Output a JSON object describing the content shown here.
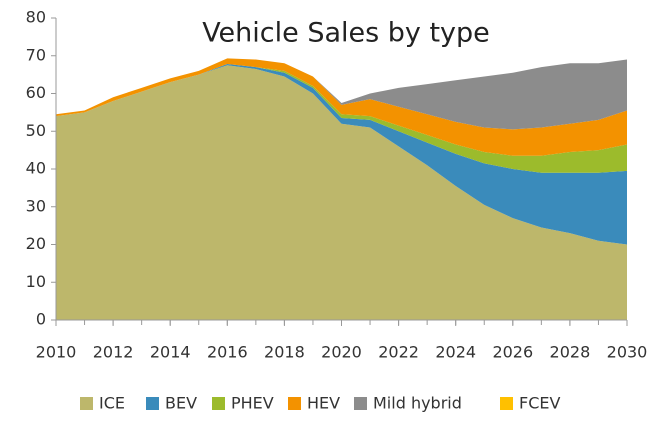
{
  "chart_data": {
    "type": "stacked_area",
    "title": "Vehicle Sales by type",
    "x": [
      2010,
      2011,
      2012,
      2013,
      2014,
      2015,
      2016,
      2017,
      2018,
      2019,
      2020,
      2021,
      2022,
      2023,
      2024,
      2025,
      2026,
      2027,
      2028,
      2029,
      2030
    ],
    "xlim": [
      2010,
      2030
    ],
    "xticks": [
      2010,
      2012,
      2014,
      2016,
      2018,
      2020,
      2022,
      2024,
      2026,
      2028,
      2030
    ],
    "ylim": [
      0,
      80
    ],
    "yticks": [
      0,
      10,
      20,
      30,
      40,
      50,
      60,
      70,
      80
    ],
    "grid": false,
    "legend": "bottom",
    "series": [
      {
        "name": "ICE",
        "color": "#bdb76b",
        "values": [
          54,
          55,
          58,
          60.5,
          63,
          65,
          67.5,
          66.5,
          64.5,
          60,
          52,
          51,
          46,
          41,
          35.5,
          30.5,
          27,
          24.5,
          23,
          21,
          20
        ]
      },
      {
        "name": "BEV",
        "color": "#3a8bbb",
        "values": [
          0,
          0,
          0,
          0,
          0,
          0,
          0.3,
          0.5,
          1,
          1.5,
          1.5,
          2,
          4,
          6,
          8.5,
          11,
          13,
          14.5,
          16,
          18,
          19.5
        ]
      },
      {
        "name": "PHEV",
        "color": "#9cbb2c",
        "values": [
          0,
          0,
          0,
          0,
          0,
          0,
          0,
          0,
          0.5,
          0.5,
          1,
          1,
          1.5,
          2,
          2.5,
          3,
          3.5,
          4.5,
          5.5,
          6,
          7
        ]
      },
      {
        "name": "HEV",
        "color": "#f39200",
        "values": [
          0.5,
          0.5,
          1,
          1,
          1,
          1,
          1.5,
          2,
          2,
          2.5,
          2.5,
          4.5,
          5,
          5.5,
          6,
          6.5,
          7,
          7.5,
          7.5,
          8,
          9
        ]
      },
      {
        "name": "Mild hybrid",
        "color": "#8c8c8c",
        "values": [
          0,
          0,
          0,
          0,
          0,
          0,
          0,
          0,
          0,
          0,
          0.5,
          1.5,
          5,
          8,
          11,
          13.5,
          15,
          16,
          16,
          15,
          13.5
        ]
      },
      {
        "name": "FCEV",
        "color": "#ffc000",
        "values": [
          0,
          0,
          0,
          0,
          0,
          0,
          0,
          0,
          0,
          0,
          0,
          0,
          0,
          0,
          0,
          0,
          0,
          0,
          0,
          0,
          0
        ]
      }
    ]
  }
}
